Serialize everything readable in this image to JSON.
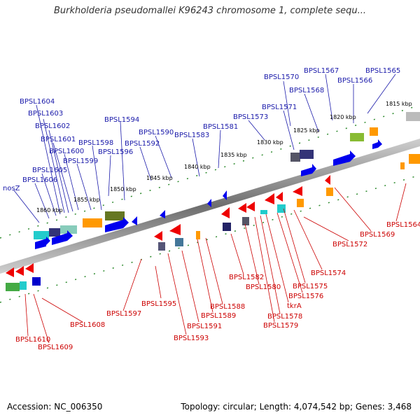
{
  "title": "Burkholderia pseudomallei K96243 chromosome 1, complete sequ...",
  "footer": {
    "accession": "Accession: NC_006350",
    "summary": "Topology: circular; Length: 4,074,542 bp; Genes: 3,468"
  },
  "kbp_labels": [
    "1815 kbp",
    "1820 kbp",
    "1825 kbp",
    "1830 kbp",
    "1835 kbp",
    "1840 kbp",
    "1845 kbp",
    "1850 kbp",
    "1855 kbp",
    "1860 kbp"
  ],
  "forward_genes": [
    "BPSL1565",
    "BPSL1566",
    "BPSL1567",
    "BPSL1568",
    "BPSL1570",
    "BPSL1571",
    "BPSL1573",
    "BPSL1581",
    "BPSL1583",
    "BPSL1590",
    "BPSL1592",
    "BPSL1594",
    "BPSL1596",
    "BPSL1598",
    "BPSL1599",
    "BPSL1600",
    "BPSL1601",
    "BPSL1602",
    "BPSL1603",
    "BPSL1604",
    "BPSL1605",
    "BPSL1606",
    "nosZ"
  ],
  "reverse_genes": [
    "BPSL1564",
    "BPSL1569",
    "BPSL1572",
    "BPSL1574",
    "BPSL1575",
    "BPSL1576",
    "tkrA",
    "BPSL1578",
    "BPSL1579",
    "BPSL1580",
    "BPSL1582",
    "BPSL1588",
    "BPSL1589",
    "BPSL1591",
    "BPSL1593",
    "BPSL1595",
    "BPSL1597",
    "BPSL1608",
    "BPSL1609",
    "BPSL1610"
  ],
  "colors": {
    "forward_label": "#1a1aaa",
    "reverse_label": "#cc0000",
    "ruler": "#2e8b2e",
    "backbone": "#777777"
  }
}
